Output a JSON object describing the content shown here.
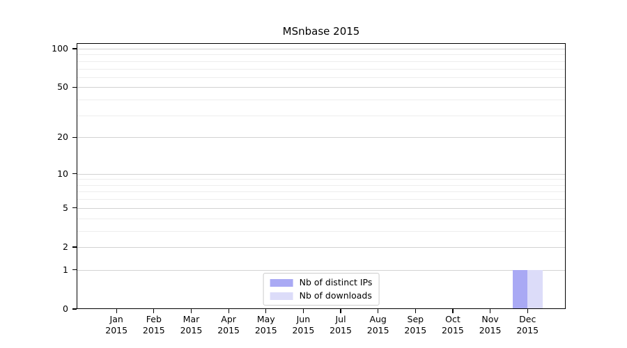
{
  "chart_data": {
    "type": "bar",
    "title": "MSnbase 2015",
    "categories": [
      "Jan",
      "Feb",
      "Mar",
      "Apr",
      "May",
      "Jun",
      "Jul",
      "Aug",
      "Sep",
      "Oct",
      "Nov",
      "Dec"
    ],
    "category_sublabel": "2015",
    "series": [
      {
        "name": "Nb of distinct IPs",
        "color": "#a9a9f4",
        "values": [
          0,
          0,
          0,
          0,
          0,
          0,
          0,
          0,
          0,
          0,
          0,
          1
        ]
      },
      {
        "name": "Nb of downloads",
        "color": "#dcdcf9",
        "values": [
          0,
          0,
          0,
          0,
          0,
          0,
          0,
          0,
          0,
          0,
          0,
          1
        ]
      }
    ],
    "xlabel": "",
    "ylabel": "",
    "yscale": "log1p",
    "ylim": [
      0,
      110.5
    ],
    "yticks": [
      0,
      1,
      2,
      5,
      10,
      20,
      50,
      100
    ],
    "minor_gridlines": [
      3,
      4,
      6,
      7,
      8,
      9,
      30,
      40,
      60,
      70,
      80,
      90
    ],
    "grid": true,
    "legend_position": "lower center inside",
    "colors": {
      "major_grid": "#d2d2d2",
      "minor_grid": "#ededed",
      "spine": "#000000",
      "legend_border": "#cccccc",
      "background": "#ffffff"
    }
  }
}
